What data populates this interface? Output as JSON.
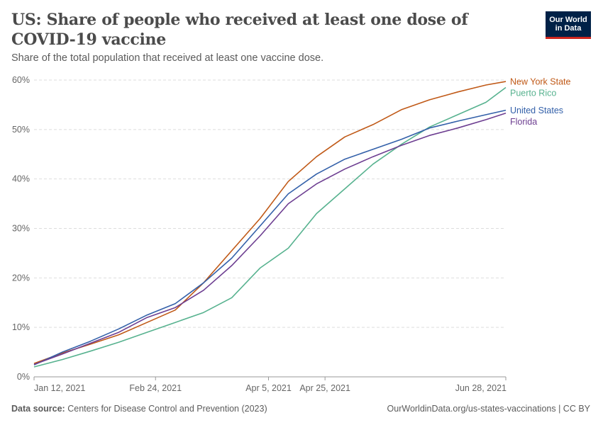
{
  "header": {
    "title": "US: Share of people who received at least one dose of COVID-19 vaccine",
    "subtitle": "Share of the total population that received at least one vaccine dose.",
    "logo_text": "Our World in Data"
  },
  "footer": {
    "source_label": "Data source:",
    "source_text": "Centers for Disease Control and Prevention (2023)",
    "url_license": "OurWorldinData.org/us-states-vaccinations | CC BY"
  },
  "colors": {
    "new_york": "#c05917",
    "puerto_rico": "#57b28f",
    "united_states": "#3360a9",
    "florida": "#6d3e91"
  },
  "chart_data": {
    "type": "line",
    "title": "US: Share of people who received at least one dose of COVID-19 vaccine",
    "subtitle": "Share of the total population that received at least one vaccine dose.",
    "xlabel": "",
    "ylabel": "",
    "x_range": [
      "2021-01-12",
      "2021-06-28"
    ],
    "x_ticks": [
      {
        "date": "2021-01-12",
        "label": "Jan 12, 2021"
      },
      {
        "date": "2021-02-24",
        "label": "Feb 24, 2021"
      },
      {
        "date": "2021-04-05",
        "label": "Apr 5, 2021"
      },
      {
        "date": "2021-04-25",
        "label": "Apr 25, 2021"
      },
      {
        "date": "2021-06-28",
        "label": "Jun 28, 2021"
      }
    ],
    "ylim": [
      0,
      60
    ],
    "y_ticks": [
      0,
      10,
      20,
      30,
      40,
      50,
      60
    ],
    "y_tick_labels": [
      "0%",
      "10%",
      "20%",
      "30%",
      "40%",
      "50%",
      "60%"
    ],
    "grid": "horizontal dashed",
    "legend": "right end labels",
    "series": [
      {
        "name": "New York State",
        "color": "#c05917",
        "points": [
          [
            "2021-01-12",
            2.7
          ],
          [
            "2021-01-22",
            4.8
          ],
          [
            "2021-02-01",
            6.6
          ],
          [
            "2021-02-11",
            8.5
          ],
          [
            "2021-02-21",
            11.0
          ],
          [
            "2021-03-03",
            13.5
          ],
          [
            "2021-03-13",
            19.0
          ],
          [
            "2021-03-23",
            25.5
          ],
          [
            "2021-04-02",
            32.0
          ],
          [
            "2021-04-12",
            39.5
          ],
          [
            "2021-04-22",
            44.5
          ],
          [
            "2021-05-02",
            48.5
          ],
          [
            "2021-05-12",
            51.0
          ],
          [
            "2021-05-22",
            54.0
          ],
          [
            "2021-06-01",
            56.0
          ],
          [
            "2021-06-11",
            57.6
          ],
          [
            "2021-06-21",
            59.0
          ],
          [
            "2021-06-28",
            59.7
          ]
        ]
      },
      {
        "name": "Puerto Rico",
        "color": "#57b28f",
        "points": [
          [
            "2021-01-12",
            2.0
          ],
          [
            "2021-01-22",
            3.5
          ],
          [
            "2021-02-01",
            5.2
          ],
          [
            "2021-02-11",
            7.0
          ],
          [
            "2021-02-21",
            9.0
          ],
          [
            "2021-03-03",
            11.0
          ],
          [
            "2021-03-13",
            13.0
          ],
          [
            "2021-03-23",
            16.0
          ],
          [
            "2021-04-02",
            22.0
          ],
          [
            "2021-04-12",
            26.0
          ],
          [
            "2021-04-22",
            33.0
          ],
          [
            "2021-05-02",
            38.0
          ],
          [
            "2021-05-12",
            43.0
          ],
          [
            "2021-05-22",
            47.0
          ],
          [
            "2021-06-01",
            50.5
          ],
          [
            "2021-06-11",
            53.0
          ],
          [
            "2021-06-21",
            55.5
          ],
          [
            "2021-06-28",
            58.5
          ]
        ]
      },
      {
        "name": "United States",
        "color": "#3360a9",
        "points": [
          [
            "2021-01-12",
            2.4
          ],
          [
            "2021-01-22",
            5.0
          ],
          [
            "2021-02-01",
            7.2
          ],
          [
            "2021-02-11",
            9.7
          ],
          [
            "2021-02-21",
            12.5
          ],
          [
            "2021-03-03",
            14.8
          ],
          [
            "2021-03-13",
            19.0
          ],
          [
            "2021-03-23",
            24.0
          ],
          [
            "2021-04-02",
            30.5
          ],
          [
            "2021-04-12",
            37.0
          ],
          [
            "2021-04-22",
            41.0
          ],
          [
            "2021-05-02",
            44.0
          ],
          [
            "2021-05-12",
            46.0
          ],
          [
            "2021-05-22",
            48.0
          ],
          [
            "2021-06-01",
            50.3
          ],
          [
            "2021-06-11",
            51.7
          ],
          [
            "2021-06-21",
            53.0
          ],
          [
            "2021-06-28",
            53.9
          ]
        ]
      },
      {
        "name": "Florida",
        "color": "#6d3e91",
        "points": [
          [
            "2021-01-12",
            2.5
          ],
          [
            "2021-01-22",
            4.6
          ],
          [
            "2021-02-01",
            6.8
          ],
          [
            "2021-02-11",
            9.0
          ],
          [
            "2021-02-21",
            12.0
          ],
          [
            "2021-03-03",
            14.0
          ],
          [
            "2021-03-13",
            17.5
          ],
          [
            "2021-03-23",
            22.5
          ],
          [
            "2021-04-02",
            28.5
          ],
          [
            "2021-04-12",
            35.0
          ],
          [
            "2021-04-22",
            39.0
          ],
          [
            "2021-05-02",
            42.0
          ],
          [
            "2021-05-12",
            44.5
          ],
          [
            "2021-05-22",
            46.8
          ],
          [
            "2021-06-01",
            48.8
          ],
          [
            "2021-06-11",
            50.3
          ],
          [
            "2021-06-21",
            52.0
          ],
          [
            "2021-06-28",
            53.3
          ]
        ]
      }
    ]
  }
}
